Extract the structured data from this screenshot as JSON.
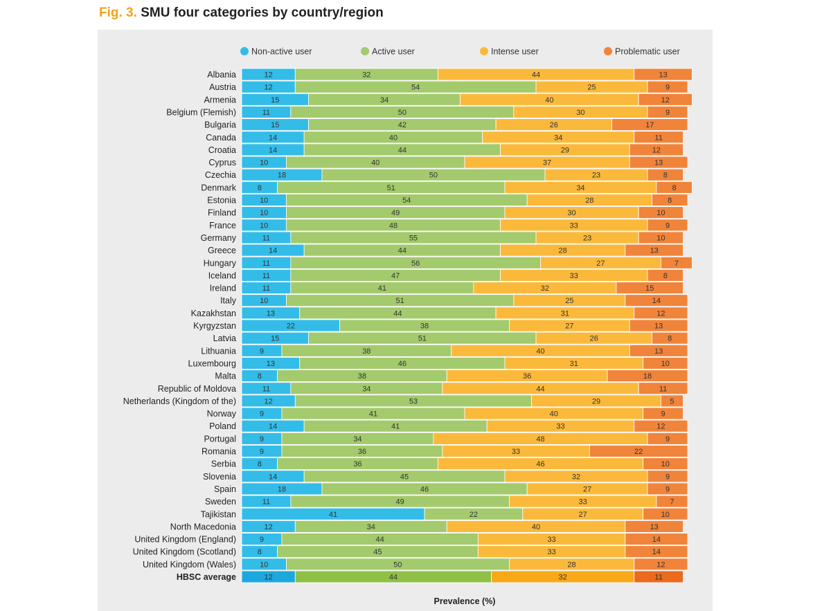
{
  "figure": {
    "label": "Fig. 3.",
    "title": "SMU four categories by country/region"
  },
  "chart_data": {
    "type": "bar",
    "orientation": "horizontal",
    "stacked": true,
    "xlabel": "Prevalence (%)",
    "xlim": [
      0,
      100
    ],
    "legend_position": "top",
    "categories": [
      "Albania",
      "Austria",
      "Armenia",
      "Belgium (Flemish)",
      "Bulgaria",
      "Canada",
      "Croatia",
      "Cyprus",
      "Czechia",
      "Denmark",
      "Estonia",
      "Finland",
      "France",
      "Germany",
      "Greece",
      "Hungary",
      "Iceland",
      "Ireland",
      "Italy",
      "Kazakhstan",
      "Kyrgyzstan",
      "Latvia",
      "Lithuania",
      "Luxembourg",
      "Malta",
      "Republic of Moldova",
      "Netherlands (Kingdom of the)",
      "Norway",
      "Poland",
      "Portugal",
      "Romania",
      "Serbia",
      "Slovenia",
      "Spain",
      "Sweden",
      "Tajikistan",
      "North Macedonia",
      "United Kingdom (England)",
      "United Kingdom (Scotland)",
      "United Kingdom (Wales)",
      "HBSC average"
    ],
    "highlight_category": "HBSC average",
    "series": [
      {
        "name": "Non-active user",
        "color": "#33bce8",
        "highlight_color": "#1ca8de",
        "values": [
          12,
          12,
          15,
          11,
          15,
          14,
          14,
          10,
          18,
          8,
          10,
          10,
          10,
          11,
          14,
          11,
          11,
          11,
          10,
          13,
          22,
          15,
          9,
          13,
          8,
          11,
          12,
          9,
          14,
          9,
          9,
          8,
          14,
          18,
          11,
          41,
          12,
          9,
          8,
          10,
          12
        ]
      },
      {
        "name": "Active user",
        "color": "#a3ca6c",
        "highlight_color": "#8ec045",
        "values": [
          32,
          54,
          34,
          50,
          42,
          40,
          44,
          40,
          50,
          51,
          54,
          49,
          48,
          55,
          44,
          56,
          47,
          41,
          51,
          44,
          38,
          51,
          38,
          46,
          38,
          34,
          53,
          41,
          41,
          34,
          36,
          36,
          45,
          46,
          49,
          22,
          34,
          44,
          45,
          50,
          44
        ]
      },
      {
        "name": "Intense user",
        "color": "#fbb93b",
        "highlight_color": "#f9a81a",
        "values": [
          44,
          25,
          40,
          30,
          26,
          34,
          29,
          37,
          23,
          34,
          28,
          30,
          33,
          23,
          28,
          27,
          33,
          32,
          25,
          31,
          27,
          26,
          40,
          31,
          36,
          44,
          29,
          40,
          33,
          48,
          33,
          46,
          32,
          27,
          33,
          27,
          40,
          33,
          33,
          28,
          32
        ]
      },
      {
        "name": "Problematic user",
        "color": "#f0843a",
        "highlight_color": "#ea6a1e",
        "values": [
          13,
          9,
          12,
          9,
          17,
          11,
          12,
          13,
          8,
          8,
          8,
          10,
          9,
          10,
          13,
          7,
          8,
          15,
          14,
          12,
          13,
          8,
          13,
          10,
          18,
          11,
          5,
          9,
          12,
          9,
          22,
          10,
          9,
          9,
          7,
          10,
          13,
          14,
          14,
          12,
          11
        ]
      }
    ]
  }
}
